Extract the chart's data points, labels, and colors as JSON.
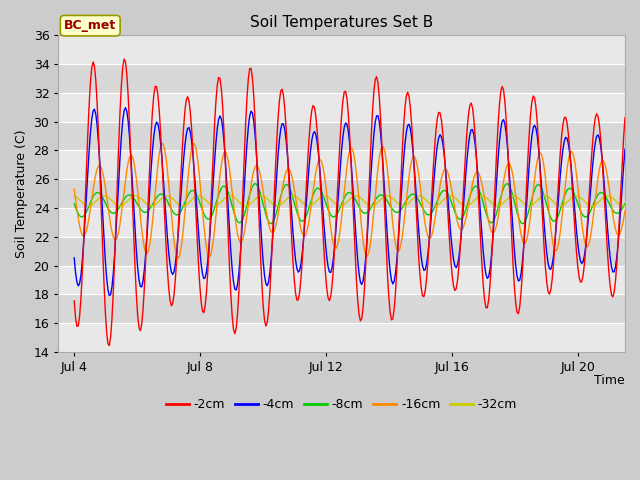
{
  "title": "Soil Temperatures Set B",
  "xlabel": "Time",
  "ylabel": "Soil Temperature (C)",
  "ylim": [
    14,
    36
  ],
  "yticks": [
    14,
    16,
    18,
    20,
    22,
    24,
    26,
    28,
    30,
    32,
    34,
    36
  ],
  "xlim_days": [
    3.5,
    21.5
  ],
  "xtick_positions": [
    4,
    8,
    12,
    16,
    20
  ],
  "xtick_labels": [
    "Jul 4",
    "Jul 8",
    "Jul 12",
    "Jul 16",
    "Jul 20"
  ],
  "annotation_text": "BC_met",
  "annotation_bg": "#ffffcc",
  "annotation_border": "#999900",
  "annotation_text_color": "#990000",
  "colors": {
    "-2cm": "#ff0000",
    "-4cm": "#0000ff",
    "-8cm": "#00cc00",
    "-16cm": "#ff8800",
    "-32cm": "#cccc00"
  },
  "legend_labels": [
    "-2cm",
    "-4cm",
    "-8cm",
    "-16cm",
    "-32cm"
  ],
  "fig_bg_color": "#cccccc",
  "plot_bg_light": "#e8e8e8",
  "plot_bg_dark": "#d8d8d8",
  "grid_color": "#ffffff",
  "title_fontsize": 11,
  "axis_label_fontsize": 9,
  "tick_fontsize": 9,
  "legend_fontsize": 9
}
